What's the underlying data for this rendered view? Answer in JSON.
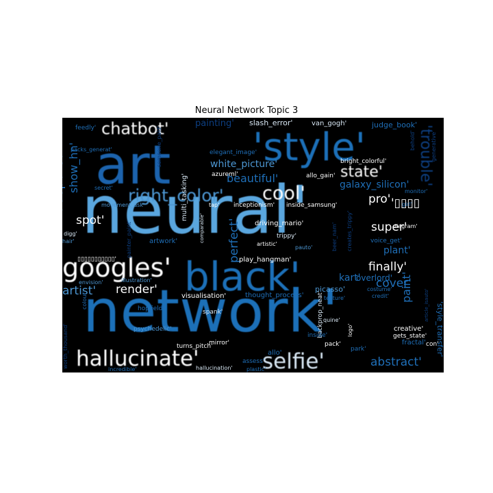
{
  "title": "Neural Network Topic 3",
  "palette": {
    "background": "#000000",
    "bright_blue": "#5aa6de",
    "mid_blue": "#1f6fb8",
    "deep_blue": "#0d3f82",
    "dark_blue": "#0b2f63",
    "pale": "#d9e8f5",
    "white": "#ffffff"
  },
  "words": [
    {
      "text": "neural'",
      "color": "#5aa6de"
    },
    {
      "text": "network'",
      "color": "#1f6fb8"
    },
    {
      "text": "art",
      "color": "#1a64ad"
    },
    {
      "text": "'style'",
      "color": "#1f6fb8"
    },
    {
      "text": "black'",
      "color": "#1f6fb8"
    },
    {
      "text": "googles'",
      "color": "#ffffff"
    },
    {
      "text": "hallucinate'",
      "color": "#ffffff"
    },
    {
      "text": "selfie'",
      "color": "#d9e8f5"
    },
    {
      "text": "chatbot'",
      "color": "#ffffff"
    },
    {
      "text": "cool'",
      "color": "#ffffff"
    },
    {
      "text": "right_color'",
      "color": "#4d97d3"
    },
    {
      "text": "state'",
      "color": "#ffffff"
    },
    {
      "text": "white_picture'",
      "color": "#4d97d3"
    },
    {
      "text": "beautiful'",
      "color": "#1f6fb8"
    },
    {
      "text": "spot'",
      "color": "#ffffff"
    },
    {
      "text": "pro'",
      "color": "#ffffff"
    },
    {
      "text": "galaxy_silicon'",
      "color": "#1f6fb8"
    },
    {
      "text": "'trouble'",
      "color": "#0d3f82"
    },
    {
      "text": "deepdream'",
      "color": "#1f6fb8"
    },
    {
      "text": "show_hn'",
      "color": "#1f6fb8"
    },
    {
      "text": "super'",
      "color": "#ffffff"
    },
    {
      "text": "cover'",
      "color": "#1f6fb8"
    },
    {
      "text": "plant'",
      "color": "#1f6fb8"
    },
    {
      "text": "finally'",
      "color": "#ffffff"
    },
    {
      "text": "artist'",
      "color": "#4d97d3"
    },
    {
      "text": "render'",
      "color": "#ffffff"
    },
    {
      "text": "kart'",
      "color": "#1f6fb8"
    },
    {
      "text": "overlord'",
      "color": "#1f6fb8"
    },
    {
      "text": "paint'",
      "color": "#1f6fb8"
    },
    {
      "text": "abstract'",
      "color": "#1f6fb8"
    },
    {
      "text": "perfect'",
      "color": "#1f6fb8"
    },
    {
      "text": "painting'",
      "color": "#0d3f82"
    },
    {
      "text": "slash_error'",
      "color": "#d9e8f5"
    },
    {
      "text": "van_gogh'",
      "color": "#d9e8f5"
    },
    {
      "text": "judge_book'",
      "color": "#1f6fb8"
    },
    {
      "text": "feedly'",
      "color": "#1f6fb8"
    },
    {
      "text": "packs_generat'",
      "color": "#1f6fb8"
    },
    {
      "text": "someone_paid'",
      "color": "#0d3f82"
    },
    {
      "text": "elegant_image'",
      "color": "#1f6fb8"
    },
    {
      "text": "bright_colorful'",
      "color": "#ffffff"
    },
    {
      "text": "generative'",
      "color": "#0d3f82"
    },
    {
      "text": "behold'",
      "color": "#0d3f82"
    },
    {
      "text": "azureml'",
      "color": "#ffffff"
    },
    {
      "text": "allo_gain'",
      "color": "#ffffff"
    },
    {
      "text": "multi_tasking'",
      "color": "#d9e8f5"
    },
    {
      "text": "secret'",
      "color": "#1f6fb8"
    },
    {
      "text": "movement_ask'",
      "color": "#4d97d3"
    },
    {
      "text": "tap'",
      "color": "#ffffff"
    },
    {
      "text": "inceptionism'",
      "color": "#ffffff"
    },
    {
      "text": "inside_samsung'",
      "color": "#ffffff"
    },
    {
      "text": "girl'",
      "color": "#1f6fb8"
    },
    {
      "text": "monitor'",
      "color": "#1f6fb8"
    },
    {
      "text": "driving_mario'",
      "color": "#ffffff"
    },
    {
      "text": "beer_nam'",
      "color": "#0d3f82"
    },
    {
      "text": "creates_trippy'",
      "color": "#0d3f82"
    },
    {
      "text": "trippy'",
      "color": "#d9e8f5"
    },
    {
      "text": "artistic'",
      "color": "#ffffff"
    },
    {
      "text": "pauto'",
      "color": "#4d97d3"
    },
    {
      "text": "voice_get'",
      "color": "#1f6fb8"
    },
    {
      "text": "digg'",
      "color": "#d9e8f5"
    },
    {
      "text": "painter_paint'",
      "color": "#0d3f82"
    },
    {
      "text": "hair'",
      "color": "#4d97d3"
    },
    {
      "text": "artwork'",
      "color": "#1f6fb8"
    },
    {
      "text": "comparable'",
      "color": "#d9e8f5"
    },
    {
      "text": "play_hangman'",
      "color": "#ffffff"
    },
    {
      "text": "▯▯▯▯▯▯▯▯▯▯▯'",
      "color": "#ffffff"
    },
    {
      "text": "'▯▯▯▯",
      "color": "#ffffff"
    },
    {
      "text": "envision'",
      "color": "#4d97d3"
    },
    {
      "text": "illustration'",
      "color": "#4d97d3"
    },
    {
      "text": "visualisation'",
      "color": "#ffffff"
    },
    {
      "text": "thought_process'",
      "color": "#1f6fb8"
    },
    {
      "text": "picasso'",
      "color": "#4d97d3"
    },
    {
      "text": "texture'",
      "color": "#1f6fb8"
    },
    {
      "text": "costume'",
      "color": "#1f6fb8"
    },
    {
      "text": "credit'",
      "color": "#1f6fb8"
    },
    {
      "text": "article_isauto'",
      "color": "#0d3f82"
    },
    {
      "text": "'style_transfer'",
      "color": "#1f6fb8"
    },
    {
      "text": "colour'",
      "color": "#1f6fb8"
    },
    {
      "text": "hopfield'",
      "color": "#1f6fb8"
    },
    {
      "text": "spank'",
      "color": "#d9e8f5"
    },
    {
      "text": "backprop_neat'",
      "color": "#d9e8f5"
    },
    {
      "text": "quine'",
      "color": "#d9e8f5"
    },
    {
      "text": "logo'",
      "color": "#ffffff"
    },
    {
      "text": "inside'",
      "color": "#1f6fb8"
    },
    {
      "text": "creative'",
      "color": "#ffffff"
    },
    {
      "text": "gets_state'",
      "color": "#ffffff"
    },
    {
      "text": "diagram'",
      "color": "#ffffff"
    },
    {
      "text": "worth_thousand'",
      "color": "#0d3f82"
    },
    {
      "text": "psychedelic'",
      "color": "#4d97d3"
    },
    {
      "text": "turns_pitch'",
      "color": "#ffffff"
    },
    {
      "text": "mirror'",
      "color": "#ffffff"
    },
    {
      "text": "allo'",
      "color": "#1f6fb8"
    },
    {
      "text": "pack'",
      "color": "#ffffff"
    },
    {
      "text": "park'",
      "color": "#1f6fb8"
    },
    {
      "text": "fractal'",
      "color": "#1f6fb8"
    },
    {
      "text": "con'",
      "color": "#ffffff"
    },
    {
      "text": "assess'",
      "color": "#1f6fb8"
    },
    {
      "text": "incredible'",
      "color": "#1f6fb8"
    },
    {
      "text": "hallucination'",
      "color": "#d9e8f5"
    },
    {
      "text": "plastic'",
      "color": "#1f6fb8"
    }
  ]
}
